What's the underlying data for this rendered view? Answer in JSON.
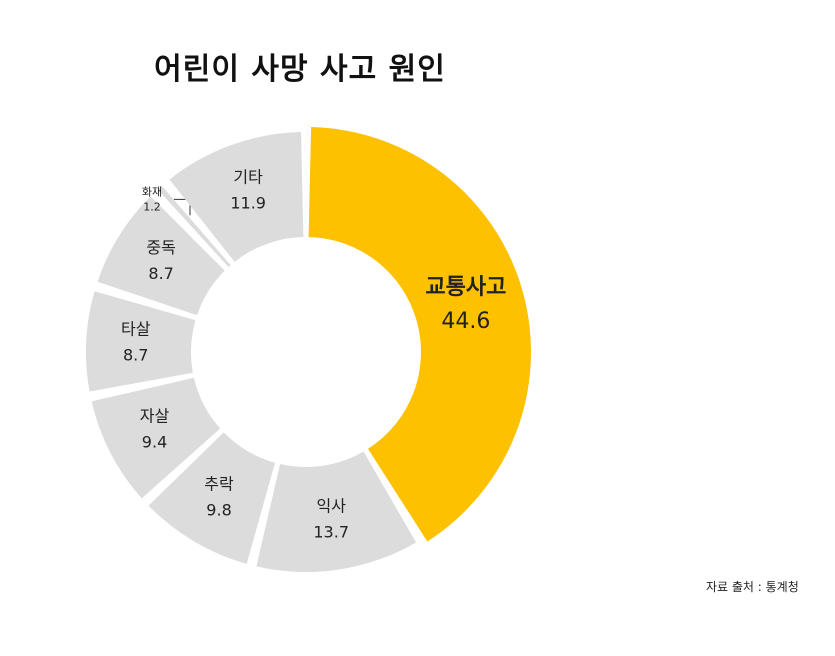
{
  "chart_data": {
    "type": "pie",
    "title": "어린이 사망 사고 원인",
    "source": "자료 출처 : 통계청",
    "slices": [
      {
        "name": "교통사고",
        "value": 44.6,
        "display": "44.6",
        "color": "#FDC100",
        "highlight": true
      },
      {
        "name": "익사",
        "value": 13.7,
        "display": "13.7",
        "color": "#DCDCDC"
      },
      {
        "name": "추락",
        "value": 9.8,
        "display": "9.8",
        "color": "#DCDCDC"
      },
      {
        "name": "자살",
        "value": 9.4,
        "display": "9.4",
        "color": "#DCDCDC"
      },
      {
        "name": "타살",
        "value": 8.7,
        "display": "8.7",
        "color": "#DCDCDC"
      },
      {
        "name": "중독",
        "value": 8.7,
        "display": "8.7",
        "color": "#DCDCDC"
      },
      {
        "name": "화재",
        "value": 1.2,
        "display": "1.2",
        "color": "#DCDCDC",
        "callout": true
      },
      {
        "name": "기타",
        "value": 11.9,
        "display": "11.9",
        "color": "#DCDCDC"
      }
    ]
  }
}
